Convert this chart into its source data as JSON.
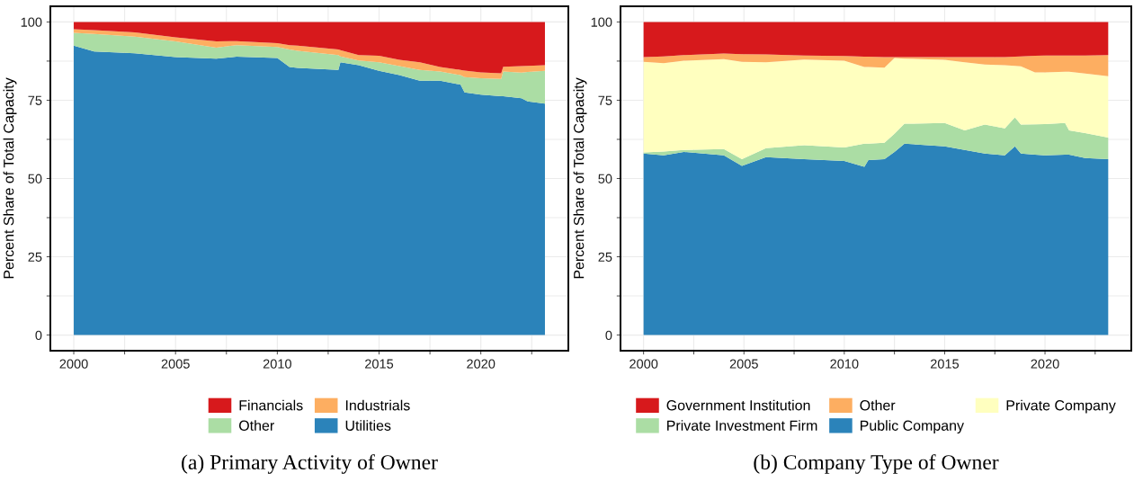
{
  "chart_data": [
    {
      "type": "area",
      "stacked": true,
      "title": "(a) Primary Activity of Owner",
      "ylabel": "Percent Share of Total Capacity",
      "x": [
        2000,
        2001,
        2003,
        2005,
        2007,
        2008,
        2010,
        2010.6,
        2011,
        2013,
        2013.1,
        2014,
        2015,
        2016,
        2017,
        2018,
        2019,
        2019.2,
        2020,
        2021,
        2021.1,
        2022,
        2022.3,
        2023.15
      ],
      "series": [
        {
          "name": "Utilities",
          "color": "#2b83ba",
          "values": [
            92.4,
            90.6,
            90.0,
            88.8,
            88.3,
            88.9,
            88.5,
            85.6,
            85.3,
            84.7,
            87.1,
            86.2,
            84.4,
            83.0,
            81.2,
            81.2,
            80.0,
            77.5,
            76.8,
            76.3,
            76.3,
            75.6,
            74.6,
            73.9
          ]
        },
        {
          "name": "Other",
          "color": "#abdda4",
          "values": [
            4.1,
            5.6,
            5.3,
            5.0,
            3.5,
            3.7,
            3.5,
            5.6,
            5.5,
            4.7,
            1.9,
            1.5,
            2.7,
            2.9,
            3.5,
            3.0,
            3.0,
            4.9,
            5.2,
            5.5,
            7.9,
            8.2,
            9.4,
            10.5
          ]
        },
        {
          "name": "Industrials",
          "color": "#fdae61",
          "values": [
            1.2,
            1.2,
            1.4,
            1.3,
            2.0,
            1.3,
            1.2,
            1.4,
            1.6,
            1.8,
            2.0,
            1.7,
            2.1,
            2.0,
            2.4,
            1.4,
            1.7,
            2.1,
            1.9,
            1.8,
            1.5,
            2.1,
            2.0,
            1.8
          ]
        },
        {
          "name": "Financials",
          "color": "#d7191c",
          "values": [
            2.3,
            2.6,
            3.3,
            4.9,
            6.2,
            6.1,
            6.8,
            7.4,
            7.6,
            8.8,
            9.0,
            10.6,
            10.8,
            12.1,
            12.9,
            14.4,
            15.3,
            15.5,
            16.1,
            16.4,
            14.3,
            14.1,
            14.0,
            13.8
          ]
        }
      ],
      "xlim": [
        1998.85,
        2024.3
      ],
      "xticks": [
        2000,
        {
          "value": 2002.5,
          "label": null
        },
        2005,
        {
          "value": 2007.5,
          "label": null
        },
        2010,
        {
          "value": 2012.5,
          "label": null
        },
        2015,
        {
          "value": 2017.5,
          "label": null
        },
        2020,
        {
          "value": 2022.5,
          "label": null
        }
      ],
      "ylim": [
        -5,
        105
      ],
      "yticks": [
        0,
        {
          "value": 12.5,
          "label": null
        },
        25,
        {
          "value": 37.5,
          "label": null
        },
        50,
        {
          "value": 62.5,
          "label": null
        },
        75,
        {
          "value": 87.5,
          "label": null
        },
        100
      ],
      "grid": true,
      "legend": "bottom"
    },
    {
      "type": "area",
      "stacked": true,
      "title": "(b) Company Type of Owner",
      "ylabel": "Percent Share of Total Capacity",
      "x": [
        2000,
        2001,
        2002,
        2004,
        2004.9,
        2006.1,
        2008,
        2010,
        2011,
        2011.2,
        2012,
        2012.5,
        2013,
        2015,
        2016,
        2017,
        2018,
        2018.5,
        2018.8,
        2019.5,
        2020,
        2021,
        2021.2,
        2022,
        2023.15
      ],
      "series": [
        {
          "name": "Public Company",
          "color": "#2b83ba",
          "values": [
            58.0,
            57.4,
            58.5,
            57.4,
            54.0,
            56.8,
            56.2,
            55.6,
            53.7,
            55.9,
            56.2,
            58.5,
            61.1,
            60.3,
            59.1,
            58.0,
            57.4,
            60.3,
            58.0,
            57.6,
            57.4,
            57.6,
            57.6,
            56.5,
            56.2
          ]
        },
        {
          "name": "Private Investment Firm",
          "color": "#abdda4",
          "values": [
            0.3,
            1.2,
            0.6,
            2.0,
            2.2,
            2.9,
            4.4,
            4.3,
            7.4,
            5.2,
            5.2,
            5.8,
            6.4,
            7.4,
            6.3,
            9.2,
            8.6,
            9.2,
            9.2,
            9.7,
            10.0,
            10.1,
            7.8,
            8.0,
            6.9
          ]
        },
        {
          "name": "Private Company",
          "color": "#ffffbf",
          "values": [
            29.0,
            28.2,
            28.5,
            28.7,
            31.1,
            27.4,
            27.4,
            27.7,
            24.5,
            24.5,
            24.0,
            24.2,
            20.8,
            20.2,
            21.7,
            19.2,
            20.2,
            16.5,
            18.6,
            16.6,
            16.5,
            16.4,
            18.7,
            19.0,
            19.6
          ]
        },
        {
          "name": "Other",
          "color": "#fdae61",
          "values": [
            1.5,
            2.2,
            1.8,
            1.8,
            2.4,
            2.5,
            1.3,
            1.5,
            3.3,
            3.3,
            3.4,
            0.3,
            0.5,
            0.9,
            1.7,
            2.4,
            2.6,
            2.9,
            3.2,
            5.3,
            5.4,
            5.2,
            5.2,
            5.8,
            6.7
          ]
        },
        {
          "name": "Government Institution",
          "color": "#d7191c",
          "values": [
            11.2,
            11.0,
            10.6,
            10.1,
            10.3,
            10.4,
            10.7,
            10.9,
            11.1,
            11.1,
            11.2,
            11.2,
            11.2,
            11.2,
            11.2,
            11.2,
            11.2,
            11.1,
            11.0,
            10.8,
            10.7,
            10.7,
            10.7,
            10.7,
            10.6
          ]
        }
      ],
      "xlim": [
        1998.85,
        2024.3
      ],
      "xticks": [
        2000,
        {
          "value": 2002.5,
          "label": null
        },
        2005,
        {
          "value": 2007.5,
          "label": null
        },
        2010,
        {
          "value": 2012.5,
          "label": null
        },
        2015,
        {
          "value": 2017.5,
          "label": null
        },
        2020,
        {
          "value": 2022.5,
          "label": null
        }
      ],
      "ylim": [
        -5,
        105
      ],
      "yticks": [
        0,
        {
          "value": 12.5,
          "label": null
        },
        25,
        {
          "value": 37.5,
          "label": null
        },
        50,
        {
          "value": 62.5,
          "label": null
        },
        75,
        {
          "value": 87.5,
          "label": null
        },
        100
      ],
      "grid": true,
      "legend": "bottom"
    }
  ]
}
